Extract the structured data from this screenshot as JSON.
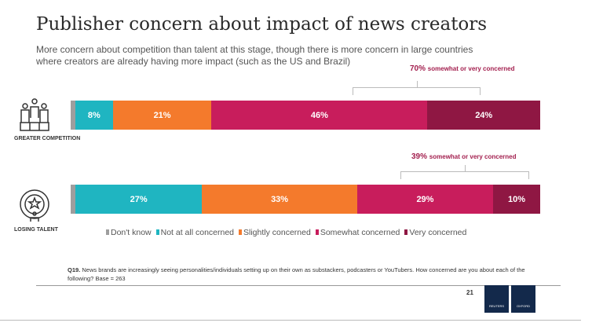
{
  "chart_data": {
    "type": "bar",
    "orientation": "horizontal",
    "stacked": true,
    "title": "Publisher concern about impact of news creators",
    "subtitle": "More concern about competition than talent at this stage, though there is more concern in large countries where creators are already having more impact (such as the US and Brazil)",
    "categories": [
      "GREATER COMPETITION",
      "LOSING TALENT"
    ],
    "series": [
      {
        "name": "Don't know",
        "color": "#9e9e9e",
        "values": [
          1,
          1
        ]
      },
      {
        "name": "Not at all concerned",
        "color": "#1fb5c1",
        "values": [
          8,
          27
        ]
      },
      {
        "name": "Slightly concerned",
        "color": "#f47a2c",
        "values": [
          21,
          33
        ]
      },
      {
        "name": "Somewhat concerned",
        "color": "#c81d5c",
        "values": [
          46,
          29
        ]
      },
      {
        "name": "Very concerned",
        "color": "#8f1743",
        "values": [
          24,
          10
        ]
      }
    ],
    "data_labels": [
      [
        "",
        "8%",
        "21%",
        "46%",
        "24%"
      ],
      [
        "",
        "27%",
        "33%",
        "29%",
        "10%"
      ]
    ],
    "annotations": [
      {
        "pct": "70%",
        "text": "somewhat or very concerned"
      },
      {
        "pct": "39%",
        "text": "somewhat or very concerned"
      }
    ],
    "xlim": [
      0,
      100
    ]
  },
  "footnote": {
    "q": "Q19.",
    "text": "News brands are increasingly seeing personalities/individuals setting up on their own as substackers, podcasters or YouTubers. How concerned are you about each of the following? Base = 263"
  },
  "page_number": "21",
  "logos": [
    "REUTERS INSTITUTE",
    "UNIVERSITY OF OXFORD"
  ]
}
